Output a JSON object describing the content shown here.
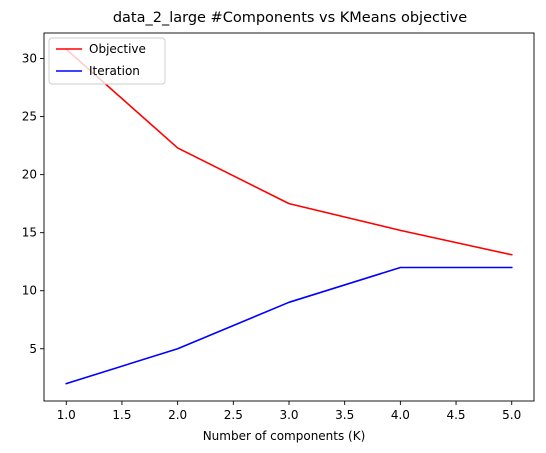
{
  "chart_data": {
    "type": "line",
    "title": "data_2_large #Components vs KMeans objective",
    "xlabel": "Number of components (K)",
    "ylabel": "",
    "x": [
      1,
      2,
      3,
      4,
      5
    ],
    "xlim": [
      0.8,
      5.2
    ],
    "ylim": [
      0.5,
      32.2
    ],
    "xticks": [
      1.0,
      1.5,
      2.0,
      2.5,
      3.0,
      3.5,
      4.0,
      4.5,
      5.0
    ],
    "xtick_labels": [
      "1.0",
      "1.5",
      "2.0",
      "2.5",
      "3.0",
      "3.5",
      "4.0",
      "4.5",
      "5.0"
    ],
    "yticks": [
      5,
      10,
      15,
      20,
      25,
      30
    ],
    "ytick_labels": [
      "5",
      "10",
      "15",
      "20",
      "25",
      "30"
    ],
    "grid": false,
    "legend_position": "top-left",
    "series": [
      {
        "name": "Objective",
        "color": "#ff0000",
        "values": [
          30.8,
          22.3,
          17.5,
          15.2,
          13.1
        ]
      },
      {
        "name": "Iteration",
        "color": "#0000ff",
        "values": [
          2,
          5,
          9,
          12,
          12
        ]
      }
    ]
  }
}
